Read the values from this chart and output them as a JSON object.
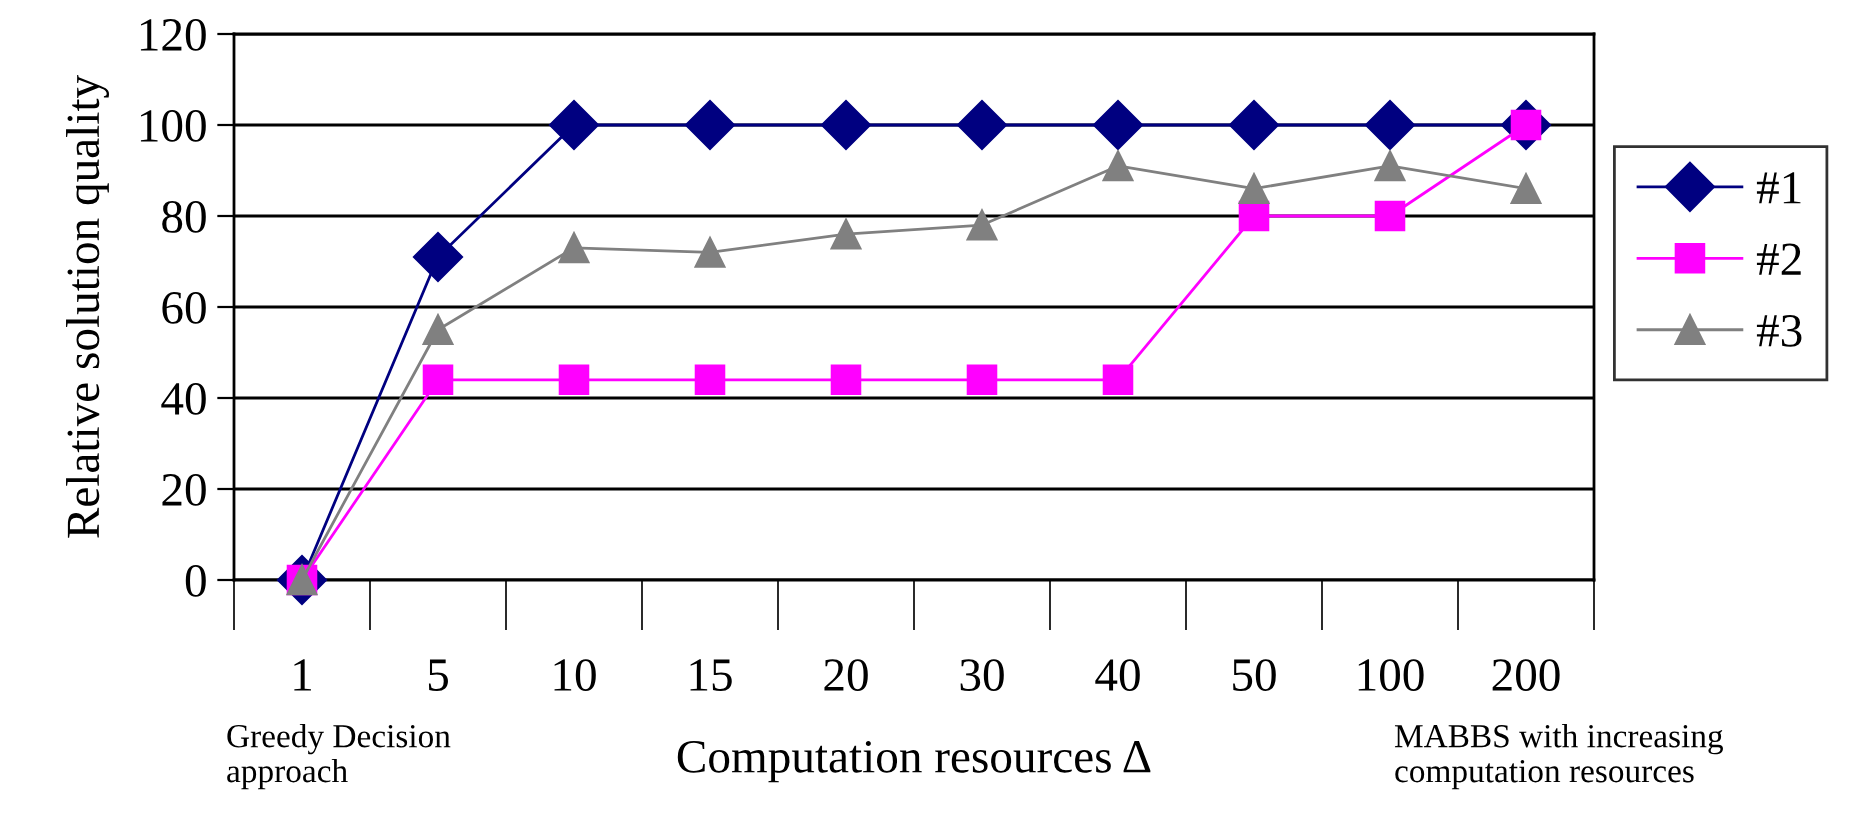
{
  "chart_data": {
    "type": "line",
    "xlabel": "Computation resources Δ",
    "ylabel": "Relative solution quality",
    "categories": [
      "1",
      "5",
      "10",
      "15",
      "20",
      "30",
      "40",
      "50",
      "100",
      "200"
    ],
    "series": [
      {
        "name": "#1",
        "color": "#000080",
        "marker": "diamond",
        "values": [
          0,
          71,
          100,
          100,
          100,
          100,
          100,
          100,
          100,
          100
        ]
      },
      {
        "name": "#2",
        "color": "#ff00ff",
        "marker": "square",
        "values": [
          0,
          44,
          44,
          44,
          44,
          44,
          44,
          80,
          80,
          100
        ]
      },
      {
        "name": "#3",
        "color": "#808080",
        "marker": "triangle",
        "values": [
          0,
          55,
          73,
          72,
          76,
          78,
          91,
          86,
          91,
          86
        ]
      }
    ],
    "ylim": [
      0,
      120
    ],
    "yticks": [
      0,
      20,
      40,
      60,
      80,
      100,
      120
    ],
    "grid": "y",
    "legend": "right",
    "annotations": [
      "Greedy Decision\napproach",
      "MABBS with increasing\ncomputation resources"
    ]
  }
}
